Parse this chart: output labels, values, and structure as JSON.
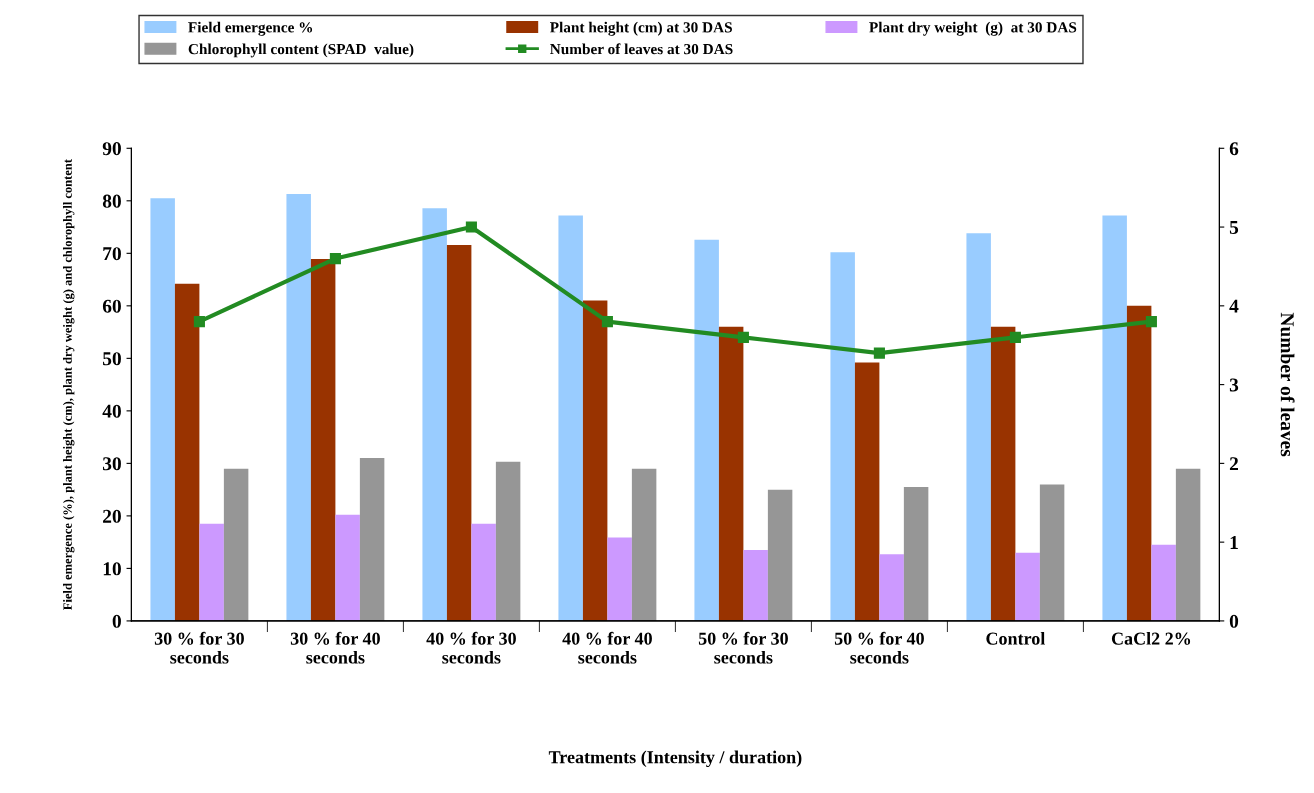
{
  "chart_data": {
    "type": "bar",
    "xlabel": "Treatments (Intensity / duration)",
    "ylabel": "Field emergence (%), plant height (cm), plant dry weight (g) and chlorophyll content",
    "y2label": "Number of leaves",
    "categories": [
      "30 % for 30\nseconds",
      "30 % for 40\nseconds",
      "40 % for 30\nseconds",
      "40 % for 40\nseconds",
      "50 % for 30\nseconds",
      "50 % for 40\nseconds",
      "Control",
      "CaCl2 2%"
    ],
    "series": [
      {
        "name": "Field emergence %",
        "color": "#99ccff",
        "values": [
          80.5,
          81.3,
          78.6,
          77.2,
          72.6,
          70.2,
          73.8,
          77.2
        ]
      },
      {
        "name": "Plant height (cm) at 30 DAS",
        "color": "#993300",
        "values": [
          64.2,
          68.9,
          71.6,
          61,
          56,
          49.2,
          56,
          60
        ]
      },
      {
        "name": "Plant dry weight  (g)  at 30 DAS",
        "color": "#cc99ff",
        "values": [
          18.5,
          20.2,
          18.5,
          15.9,
          13.5,
          12.7,
          13,
          14.5
        ]
      },
      {
        "name": "Chlorophyll content (SPAD  value)",
        "color": "#969696",
        "values": [
          29,
          31,
          30.3,
          29,
          25,
          25.5,
          26,
          29
        ]
      },
      {
        "name": "Number of leaves at 30 DAS",
        "type": "line",
        "axis": "y2",
        "color": "#228b22",
        "marker": "square",
        "values": [
          3.8,
          4.6,
          5.0,
          3.8,
          3.6,
          3.4,
          3.6,
          3.8
        ]
      }
    ],
    "ylim": [
      0,
      90
    ],
    "yticks": [
      0,
      10,
      20,
      30,
      40,
      50,
      60,
      70,
      80,
      90
    ],
    "y2lim": [
      0,
      6
    ],
    "y2ticks": [
      0,
      1,
      2,
      3,
      4,
      5,
      6
    ],
    "grid": false,
    "legend": "top"
  }
}
